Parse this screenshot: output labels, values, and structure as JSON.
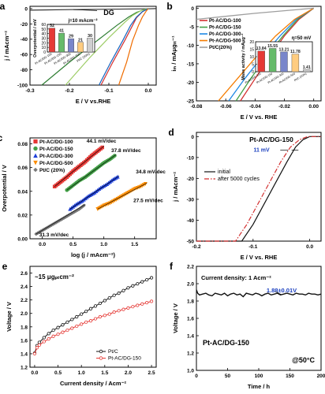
{
  "figure": {
    "background": "#ffffff"
  },
  "chart_data": [
    {
      "id": "a",
      "panel_label": "a",
      "type": "line",
      "xlabel": "E / V vs.RHE",
      "ylabel": "j / mAcm⁻²",
      "xlim": [
        -0.3,
        0.02
      ],
      "ylim": [
        -100,
        3
      ],
      "xticks": [
        "-0.3",
        "-0.2",
        "-0.1",
        "0.0"
      ],
      "xtick_values": [
        -0.3,
        -0.2,
        -0.1,
        0.0
      ],
      "yticks": [
        "0",
        "-20",
        "-40",
        "-60",
        "-80",
        "-100"
      ],
      "ytick_values": [
        0,
        -20,
        -40,
        -60,
        -80,
        -100
      ],
      "annotation": "DG",
      "series": [
        {
          "color": "#333333",
          "x": [
            -0.3,
            -0.2,
            -0.1,
            0.0,
            0.02
          ],
          "y": [
            -2,
            -1.3,
            -0.8,
            -0.3,
            0
          ]
        },
        {
          "color": "#2e7d32",
          "x": [
            -0.27,
            -0.2,
            -0.13,
            -0.08,
            -0.05,
            -0.03,
            -0.01,
            0.0
          ],
          "y": [
            -100,
            -70,
            -42,
            -22,
            -11,
            -5,
            -1,
            0
          ]
        },
        {
          "color": "#9ccc65",
          "x": [
            -0.21,
            -0.15,
            -0.1,
            -0.06,
            -0.04,
            -0.02,
            0.0
          ],
          "y": [
            -100,
            -65,
            -38,
            -18,
            -9,
            -3,
            0
          ]
        },
        {
          "color": "#d32f2f",
          "x": [
            -0.12,
            -0.09,
            -0.06,
            -0.04,
            -0.03,
            -0.015,
            0.0
          ],
          "y": [
            -100,
            -70,
            -42,
            -22,
            -12,
            -4,
            0
          ]
        },
        {
          "color": "#1565c0",
          "x": [
            -0.125,
            -0.095,
            -0.065,
            -0.045,
            -0.03,
            -0.015,
            0.0
          ],
          "y": [
            -100,
            -70,
            -42,
            -22,
            -11,
            -4,
            0
          ]
        },
        {
          "color": "#ef6c00",
          "x": [
            -0.075,
            -0.055,
            -0.04,
            -0.025,
            -0.015,
            -0.005,
            0.0
          ],
          "y": [
            -100,
            -70,
            -42,
            -22,
            -11,
            -3,
            0
          ]
        }
      ],
      "inset": {
        "type": "bar",
        "title": "j=10 mAcm⁻²",
        "ylabel": "Overpotential / mV",
        "ylim": [
          0,
          60
        ],
        "yticks": [
          "0",
          "10",
          "20",
          "30",
          "40",
          "50",
          "60"
        ],
        "categories": [
          "Pt-AC/DG-100",
          "Pt-AC/DG-150",
          "Pt-AC/DG-300",
          "Pt-AC/DG-500",
          "Pt/C (20%)"
        ],
        "values": [
          52,
          41,
          29,
          21,
          30
        ],
        "value_labels": [
          "52",
          "41",
          "29",
          "21",
          "30"
        ],
        "colors": [
          "#e53935",
          "#66bb6a",
          "#7986cb",
          "#ffcc80",
          "#cfcfcf"
        ]
      }
    },
    {
      "id": "b",
      "panel_label": "b",
      "type": "line",
      "xlabel": "E / V vs. RHE",
      "ylabel": "iₘ / mAμgₜₜ⁻¹",
      "xlim": [
        -0.08,
        0.005
      ],
      "ylim": [
        -25,
        0.5
      ],
      "xticks": [
        "-0.08",
        "-0.06",
        "-0.04",
        "-0.02",
        "0.00"
      ],
      "xtick_values": [
        -0.08,
        -0.06,
        -0.04,
        -0.02,
        0.0
      ],
      "yticks": [
        "0",
        "-5",
        "-10",
        "-15",
        "-20",
        "-25"
      ],
      "ytick_values": [
        0,
        -5,
        -10,
        -15,
        -20,
        -25
      ],
      "legend_position": "top-left",
      "series": [
        {
          "name": "Pt-AC/DG-100",
          "color": "#d32f2f",
          "x": [
            -0.05,
            -0.04,
            -0.03,
            -0.02,
            -0.01,
            0.0
          ],
          "y": [
            -25,
            -19,
            -13,
            -7.5,
            -3,
            0
          ]
        },
        {
          "name": "Pt-AC/DG-150",
          "color": "#43a047",
          "x": [
            -0.053,
            -0.043,
            -0.032,
            -0.021,
            -0.011,
            0.0
          ],
          "y": [
            -25,
            -19,
            -13,
            -7.5,
            -3,
            0
          ]
        },
        {
          "name": "Pt-AC/DG-300",
          "color": "#1e88e5",
          "x": [
            -0.058,
            -0.047,
            -0.035,
            -0.023,
            -0.012,
            0.0
          ],
          "y": [
            -25,
            -19,
            -13,
            -7.5,
            -3,
            0
          ]
        },
        {
          "name": "Pt-AC/DG-500",
          "color": "#f57c00",
          "x": [
            -0.065,
            -0.052,
            -0.039,
            -0.026,
            -0.013,
            0.0
          ],
          "y": [
            -25,
            -19,
            -13,
            -7.5,
            -3,
            0
          ]
        },
        {
          "name": "Pt/C(20%)",
          "color": "#9e9e9e",
          "x": [
            -0.08,
            -0.06,
            -0.04,
            -0.02,
            0.0
          ],
          "y": [
            -3,
            -2.2,
            -1.4,
            -0.7,
            0
          ]
        }
      ],
      "inset": {
        "type": "bar",
        "title": "η=50 mV",
        "ylabel": "Mass activity / mAμg⁻¹",
        "ylim": [
          0,
          20
        ],
        "yticks": [
          "0",
          "5",
          "10",
          "15",
          "20"
        ],
        "categories": [
          "Pt-AC/DG-100",
          "Pt-AC/DG-150",
          "Pt-AC/DG-300",
          "Pt-AC/DG-500",
          "Pt/C (20%)"
        ],
        "values": [
          13.84,
          15.55,
          13.21,
          11.78,
          1.41
        ],
        "value_labels": [
          "13.84",
          "15.55",
          "13.21",
          "11.78",
          "1.41"
        ],
        "colors": [
          "#e53935",
          "#66bb6a",
          "#7986cb",
          "#ffcc80",
          "#cfcfcf"
        ]
      }
    },
    {
      "id": "c",
      "panel_label": "c",
      "type": "scatter",
      "xlabel": "log (j / mAcm⁻²)",
      "ylabel": "Overpotential / V",
      "xlim": [
        -0.2,
        1.85
      ],
      "ylim": [
        0,
        0.085
      ],
      "xticks": [
        "0.0",
        "0.5",
        "1.0",
        "1.5"
      ],
      "xtick_values": [
        0,
        0.5,
        1.0,
        1.5
      ],
      "yticks": [
        "0.00",
        "0.02",
        "0.04",
        "0.06",
        "0.08"
      ],
      "ytick_values": [
        0,
        0.02,
        0.04,
        0.06,
        0.08
      ],
      "legend_position": "top-left",
      "series": [
        {
          "name": "Pt-AC/DG-100",
          "color": "#e53935",
          "marker": "square",
          "slope_label": "44.1 mV/dec",
          "x": [
            0.2,
            0.3,
            0.4,
            0.5,
            0.6,
            0.7,
            0.8,
            0.9,
            1.0
          ],
          "y": [
            0.044,
            0.048,
            0.052,
            0.057,
            0.061,
            0.065,
            0.07,
            0.074,
            0.078
          ]
        },
        {
          "name": "Pt-AC/DG-150",
          "color": "#43a047",
          "marker": "circle",
          "slope_label": "37.8 mV/dec",
          "x": [
            0.4,
            0.5,
            0.6,
            0.7,
            0.8,
            0.9,
            1.0,
            1.1,
            1.2
          ],
          "y": [
            0.041,
            0.045,
            0.049,
            0.052,
            0.056,
            0.06,
            0.064,
            0.067,
            0.071
          ]
        },
        {
          "name": "Pt-AC/DG-300",
          "color": "#1e40d8",
          "marker": "triangle",
          "slope_label": "34.8 mV/dec",
          "x": [
            0.45,
            0.55,
            0.65,
            0.75,
            0.85,
            0.95,
            1.05,
            1.15,
            1.25
          ],
          "y": [
            0.025,
            0.029,
            0.032,
            0.036,
            0.039,
            0.043,
            0.046,
            0.05,
            0.053
          ]
        },
        {
          "name": "Pt-AC/DG-500",
          "color": "#fb8c00",
          "marker": "triangle-down",
          "slope_label": "27.5 mV/dec",
          "x": [
            0.9,
            1.0,
            1.1,
            1.2,
            1.3,
            1.4,
            1.5,
            1.6,
            1.7
          ],
          "y": [
            0.025,
            0.028,
            0.03,
            0.033,
            0.036,
            0.039,
            0.042,
            0.044,
            0.047
          ]
        },
        {
          "name": "Pt/C (20%)",
          "color": "#777777",
          "marker": "diamond",
          "slope_label": "31.3 mV/dec",
          "x": [
            -0.1,
            0.0,
            0.1,
            0.2,
            0.3,
            0.4,
            0.5,
            0.6,
            0.7
          ],
          "y": [
            0.004,
            0.007,
            0.01,
            0.013,
            0.016,
            0.019,
            0.022,
            0.025,
            0.029
          ]
        }
      ]
    },
    {
      "id": "d",
      "panel_label": "d",
      "type": "line",
      "title": "Pt-AC/DG-150",
      "xlabel": "E / V vs. RHE",
      "ylabel": "j / mAcm⁻²",
      "xlim": [
        -0.2,
        0.02
      ],
      "ylim": [
        -50,
        2
      ],
      "xticks": [
        "-0.2",
        "-0.1",
        "0.0"
      ],
      "xtick_values": [
        -0.2,
        -0.1,
        0.0
      ],
      "yticks": [
        "0",
        "-10",
        "-20",
        "-30",
        "-40",
        "-50"
      ],
      "ytick_values": [
        0,
        -10,
        -20,
        -30,
        -40,
        -50
      ],
      "annotation": "11 mV",
      "legend_position": "center",
      "series": [
        {
          "name": "initial",
          "color": "#111111",
          "dash": "",
          "x": [
            -0.2,
            -0.12,
            -0.1,
            -0.08,
            -0.06,
            -0.04,
            -0.025,
            -0.012,
            0.0,
            0.02
          ],
          "y": [
            -50,
            -50,
            -42,
            -32,
            -22,
            -12,
            -5,
            -1.5,
            0,
            0
          ]
        },
        {
          "name": "after 5000 cycles",
          "color": "#d32f2f",
          "dash": "6,2,1.5,2",
          "x": [
            -0.2,
            -0.131,
            -0.111,
            -0.091,
            -0.071,
            -0.051,
            -0.034,
            -0.018,
            -0.004,
            0.02
          ],
          "y": [
            -50,
            -50,
            -42,
            -32,
            -22,
            -12,
            -5,
            -1.5,
            0,
            0
          ]
        }
      ]
    },
    {
      "id": "e",
      "panel_label": "e",
      "type": "line",
      "annotation": "~15 μgₚₜcm⁻²",
      "xlabel": "Current density / Acm⁻²",
      "ylabel": "Voltage / V",
      "xlim": [
        -0.1,
        2.6
      ],
      "ylim": [
        1.2,
        2.7
      ],
      "xticks": [
        "0.0",
        "0.5",
        "1.0",
        "1.5",
        "2.0",
        "2.5"
      ],
      "xtick_values": [
        0,
        0.5,
        1.0,
        1.5,
        2.0,
        2.5
      ],
      "yticks": [
        "1.2",
        "1.4",
        "1.6",
        "1.8",
        "2.0",
        "2.2",
        "2.4",
        "2.6"
      ],
      "ytick_values": [
        1.2,
        1.4,
        1.6,
        1.8,
        2.0,
        2.2,
        2.4,
        2.6
      ],
      "legend_position": "bottom-right",
      "series": [
        {
          "name": "Pt/C",
          "color": "#111111",
          "marker": "circle",
          "x": [
            0.0,
            0.05,
            0.1,
            0.2,
            0.3,
            0.4,
            0.5,
            0.6,
            0.7,
            0.8,
            0.9,
            1.0,
            1.1,
            1.2,
            1.3,
            1.4,
            1.5,
            1.6,
            1.7,
            1.8,
            1.9,
            2.0,
            2.1,
            2.2,
            2.3,
            2.4,
            2.5
          ],
          "y": [
            1.41,
            1.52,
            1.57,
            1.64,
            1.7,
            1.75,
            1.79,
            1.83,
            1.87,
            1.91,
            1.95,
            1.99,
            2.03,
            2.07,
            2.11,
            2.15,
            2.19,
            2.23,
            2.27,
            2.3,
            2.34,
            2.38,
            2.41,
            2.44,
            2.47,
            2.5,
            2.53
          ]
        },
        {
          "name": "Pt-AC/DG-150",
          "color": "#e53935",
          "marker": "circle",
          "x": [
            0.0,
            0.05,
            0.1,
            0.2,
            0.3,
            0.4,
            0.5,
            0.6,
            0.7,
            0.8,
            0.9,
            1.0,
            1.1,
            1.2,
            1.3,
            1.4,
            1.5,
            1.6,
            1.7,
            1.8,
            1.9,
            2.0,
            2.1,
            2.2,
            2.3,
            2.4,
            2.5
          ],
          "y": [
            1.4,
            1.49,
            1.53,
            1.58,
            1.62,
            1.66,
            1.69,
            1.72,
            1.75,
            1.78,
            1.81,
            1.84,
            1.87,
            1.89,
            1.92,
            1.95,
            1.97,
            1.99,
            2.02,
            2.04,
            2.06,
            2.08,
            2.1,
            2.12,
            2.14,
            2.16,
            2.18
          ]
        }
      ]
    },
    {
      "id": "f",
      "panel_label": "f",
      "type": "line",
      "annotations": [
        "Current density: 1 Acm⁻²",
        "1.88±0.01V",
        "Pt-AC/DG-150",
        "@50°C"
      ],
      "xlabel": "Time / h",
      "ylabel": "Voltage / V",
      "xlim": [
        0,
        200
      ],
      "ylim": [
        1.0,
        2.2
      ],
      "xticks": [
        "0",
        "50",
        "100",
        "150",
        "200"
      ],
      "xtick_values": [
        0,
        50,
        100,
        150,
        200
      ],
      "yticks": [
        "1.0",
        "1.2",
        "1.4",
        "1.6",
        "1.8",
        "2.0",
        "2.2"
      ],
      "ytick_values": [
        1.0,
        1.2,
        1.4,
        1.6,
        1.8,
        2.0,
        2.2
      ],
      "series": [
        {
          "color": "#111111",
          "x": [
            0,
            2,
            5,
            10,
            15,
            20,
            25,
            30,
            35,
            40,
            45,
            50,
            55,
            60,
            65,
            70,
            75,
            80,
            85,
            90,
            95,
            100,
            105,
            110,
            115,
            120,
            125,
            130,
            135,
            140,
            145,
            150,
            155,
            160,
            165,
            170,
            175,
            180,
            185,
            190,
            195,
            200
          ],
          "y": [
            1.93,
            1.89,
            1.87,
            1.88,
            1.89,
            1.87,
            1.86,
            1.89,
            1.88,
            1.87,
            1.89,
            1.86,
            1.88,
            1.89,
            1.87,
            1.88,
            1.85,
            1.89,
            1.88,
            1.87,
            1.89,
            1.88,
            1.86,
            1.88,
            1.89,
            1.87,
            1.88,
            1.89,
            1.87,
            1.88,
            1.89,
            1.88,
            1.87,
            1.89,
            1.88,
            1.88,
            1.87,
            1.89,
            1.88,
            1.88,
            1.87,
            1.88
          ]
        }
      ]
    }
  ]
}
